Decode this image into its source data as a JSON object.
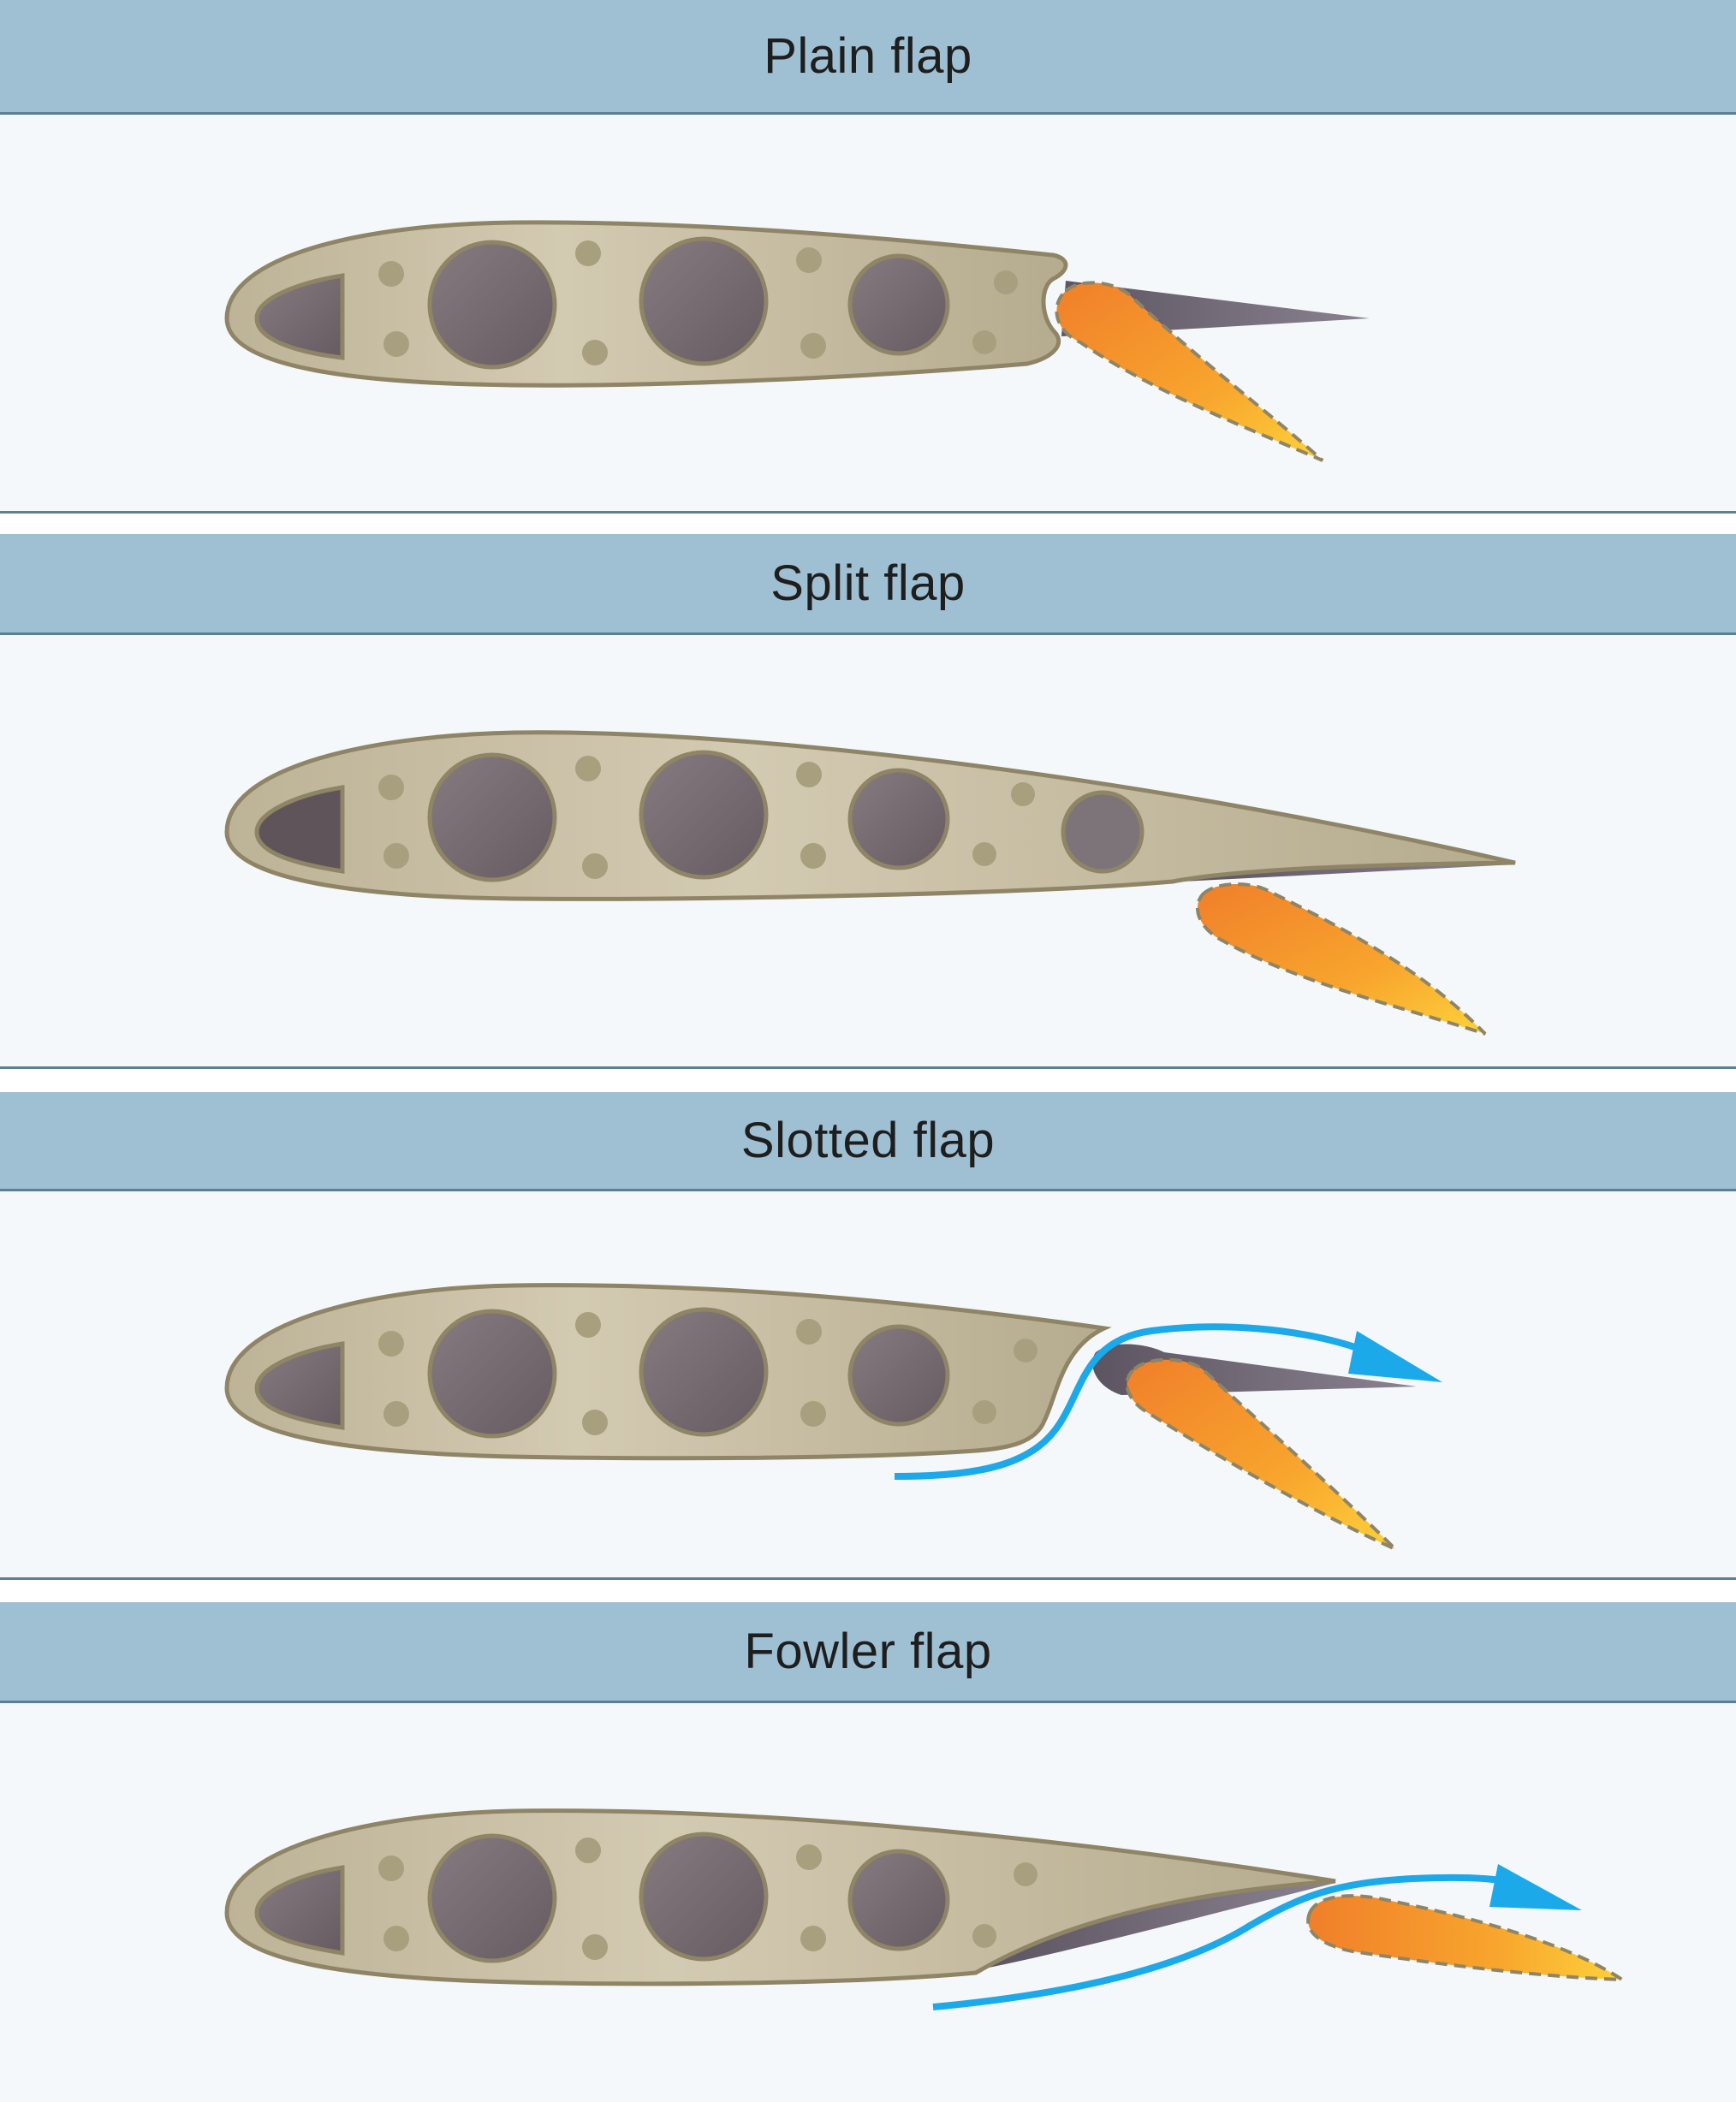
{
  "panels": [
    {
      "id": "plain",
      "title": "Plain flap",
      "airflow": false
    },
    {
      "id": "split",
      "title": "Split flap",
      "airflow": false
    },
    {
      "id": "slotted",
      "title": "Slotted flap",
      "airflow": true
    },
    {
      "id": "fowler",
      "title": "Fowler flap",
      "airflow": true
    }
  ],
  "colors": {
    "banner": "#9fbfd3",
    "panel_background": "#f4f8fb",
    "rule": "#5d7f92",
    "wing_fill": "#c9bfa6",
    "wing_outline": "#8f8566",
    "hole_fill": "#756b70",
    "flap_orange": "#f28c28",
    "flap_yellow": "#fcc12f",
    "flap_retracted": "#6c6470",
    "airflow_arrow": "#1ba9ea"
  },
  "icons": [
    "wing-section",
    "lightening-hole",
    "flap",
    "airflow-arrow"
  ]
}
